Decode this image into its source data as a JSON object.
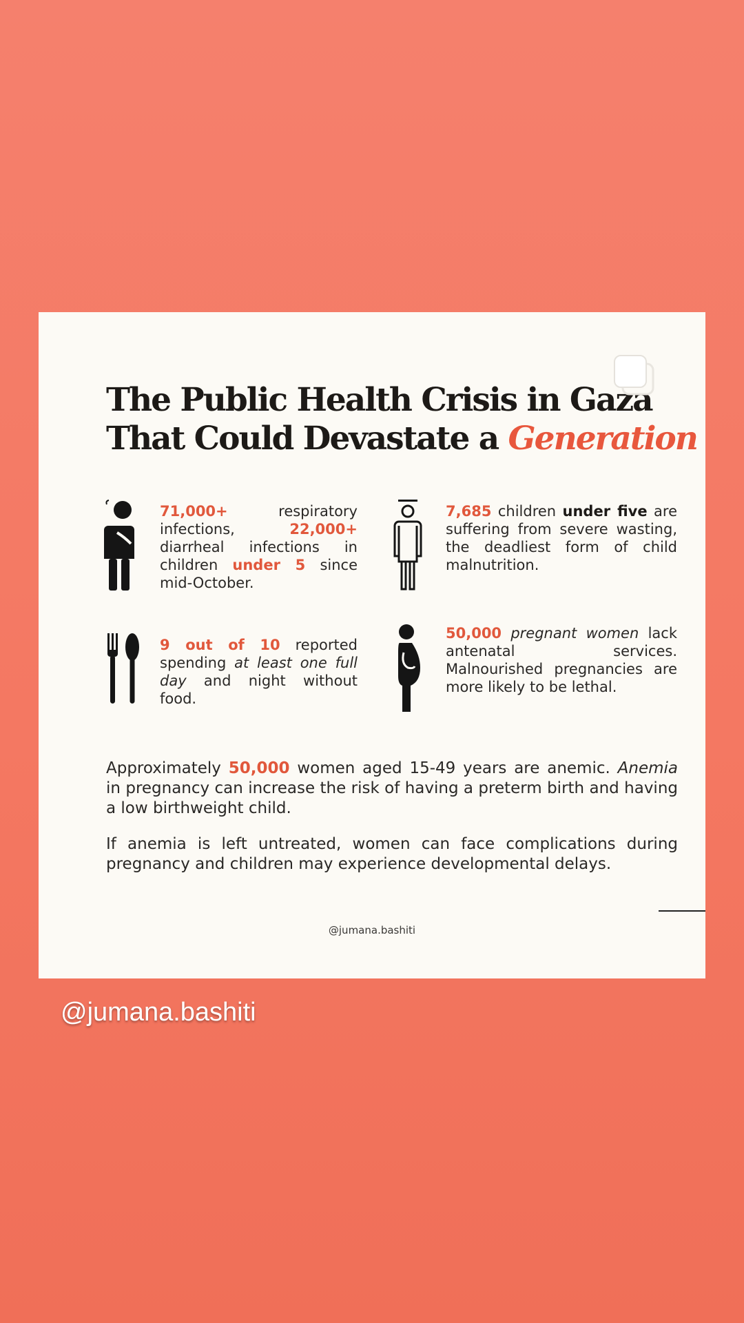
{
  "title": {
    "line1": "The Public Health Crisis in Gaza",
    "line2_start": "That Could Devastate a ",
    "line2_accent": "Generation"
  },
  "stats": {
    "respiratory": {
      "num1": "71,000+",
      "t1": " respiratory infections, ",
      "num2": "22,000+",
      "t2": " diarrheal infections in children ",
      "num3": "under 5",
      "t3": " since mid-October."
    },
    "wasting": {
      "num": "7,685",
      "t1": " children ",
      "bold1": "under five",
      "t2": " are suffering from severe wasting, the deadliest form of child malnutrition."
    },
    "food": {
      "num": "9 out of 10",
      "t1": " reported spending ",
      "ital": "at least one full day",
      "t2": " and night without food."
    },
    "pregnant": {
      "num": "50,000",
      "ital": " pregnant women",
      "t1": " lack antenatal services. Malnourished pregnancies are more likely to be lethal."
    }
  },
  "paragraphs": {
    "anemia": {
      "t1": "Approximately ",
      "num": "50,000",
      "t2": " women aged 15-49 years are anemic. ",
      "ital": "Anemia",
      "t3": " in pregnancy can increase the risk of having a preterm birth and having a low birthweight child."
    },
    "untreated": "If anemia is left untreated, women can face complications during pregnancy and children may experience developmental delays."
  },
  "card_handle": "@jumana.bashiti",
  "story_handle": "@jumana.bashiti",
  "colors": {
    "accent": "#e8573d",
    "background": "#f47862",
    "card": "#fcfaf5"
  },
  "icons": [
    "sick-child-icon",
    "child-wasting-icon",
    "fork-spoon-icon",
    "pregnant-woman-icon",
    "copy-icon"
  ]
}
